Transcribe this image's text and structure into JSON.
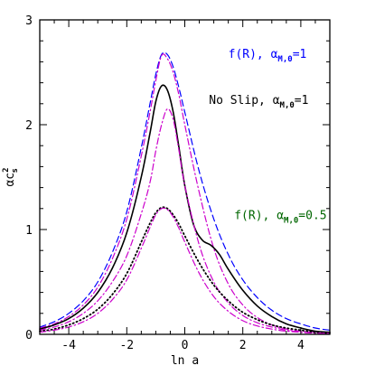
{
  "chart_data": {
    "type": "line",
    "title": "",
    "xlabel": "ln a",
    "ylabel_base": "αc",
    "ylabel_sup": "2",
    "ylabel_sub": "s",
    "xlim": [
      -5,
      5
    ],
    "ylim": [
      0,
      3
    ],
    "xticks": [
      -4,
      -2,
      0,
      2,
      4
    ],
    "yticks": [
      0,
      1,
      2,
      3
    ],
    "grid": false,
    "legend": "none",
    "series": [
      {
        "color": "#0000ff",
        "dash": "dashed",
        "x": [
          -5,
          -4.5,
          -4,
          -3.5,
          -3,
          -2.5,
          -2,
          -1.5,
          -1.2,
          -1,
          -0.8,
          -0.6,
          -0.4,
          -0.2,
          0,
          0.5,
          1,
          1.5,
          2,
          2.5,
          3,
          3.5,
          4,
          4.5,
          5
        ],
        "y": [
          0.07,
          0.12,
          0.2,
          0.32,
          0.5,
          0.78,
          1.17,
          1.78,
          2.2,
          2.48,
          2.67,
          2.67,
          2.55,
          2.35,
          2.12,
          1.55,
          1.1,
          0.76,
          0.52,
          0.35,
          0.23,
          0.15,
          0.1,
          0.06,
          0.04
        ]
      },
      {
        "color": "#cc00cc",
        "dash": "dashdot",
        "x": [
          -5,
          -4.5,
          -4,
          -3.5,
          -3,
          -2.5,
          -2,
          -1.5,
          -1.2,
          -1,
          -0.8,
          -0.6,
          -0.4,
          -0.2,
          0,
          0.5,
          1,
          1.5,
          2,
          2.5,
          3,
          3.5,
          4,
          4.5,
          5
        ],
        "y": [
          0.06,
          0.1,
          0.17,
          0.28,
          0.45,
          0.72,
          1.1,
          1.7,
          2.12,
          2.42,
          2.66,
          2.63,
          2.5,
          2.28,
          2.0,
          1.35,
          0.82,
          0.48,
          0.28,
          0.16,
          0.09,
          0.05,
          0.03,
          0.02,
          0.01
        ]
      },
      {
        "color": "#000000",
        "dash": "solid",
        "x": [
          -5,
          -4.5,
          -4,
          -3.5,
          -3,
          -2.5,
          -2,
          -1.5,
          -1.2,
          -1,
          -0.8,
          -0.6,
          -0.4,
          -0.2,
          0,
          0.3,
          0.6,
          0.9,
          1.2,
          1.5,
          2,
          2.5,
          3,
          3.5,
          4,
          4.5,
          5
        ],
        "y": [
          0.05,
          0.09,
          0.15,
          0.25,
          0.4,
          0.63,
          0.97,
          1.5,
          1.92,
          2.22,
          2.37,
          2.33,
          2.12,
          1.78,
          1.42,
          1.05,
          0.9,
          0.85,
          0.76,
          0.62,
          0.42,
          0.27,
          0.17,
          0.1,
          0.06,
          0.03,
          0.02
        ]
      },
      {
        "color": "#cc00cc",
        "dash": "dashdot",
        "x": [
          -5,
          -4.5,
          -4,
          -3.5,
          -3,
          -2.5,
          -2,
          -1.5,
          -1.2,
          -1,
          -0.8,
          -0.6,
          -0.4,
          -0.2,
          0,
          0.5,
          1,
          1.5,
          2,
          2.5,
          3,
          3.5,
          4,
          4.5,
          5
        ],
        "y": [
          0.04,
          0.07,
          0.12,
          0.2,
          0.32,
          0.5,
          0.75,
          1.15,
          1.45,
          1.75,
          2.0,
          2.15,
          2.05,
          1.75,
          1.42,
          0.85,
          0.5,
          0.3,
          0.18,
          0.11,
          0.07,
          0.04,
          0.02,
          0.01,
          0.01
        ]
      },
      {
        "color": "#000000",
        "dash": "dotted",
        "x": [
          -5,
          -4.5,
          -4,
          -3.5,
          -3,
          -2.5,
          -2,
          -1.5,
          -1.2,
          -1,
          -0.8,
          -0.6,
          -0.4,
          -0.2,
          0,
          0.5,
          1,
          1.5,
          2,
          2.5,
          3,
          3.5,
          4,
          4.5,
          5
        ],
        "y": [
          0.03,
          0.05,
          0.09,
          0.15,
          0.24,
          0.38,
          0.58,
          0.88,
          1.06,
          1.16,
          1.21,
          1.2,
          1.14,
          1.05,
          0.94,
          0.68,
          0.47,
          0.32,
          0.21,
          0.14,
          0.09,
          0.06,
          0.04,
          0.02,
          0.01
        ]
      },
      {
        "color": "#cc00cc",
        "dash": "dashdot",
        "x": [
          -5,
          -4.5,
          -4,
          -3.5,
          -3,
          -2.5,
          -2,
          -1.5,
          -1.2,
          -1,
          -0.8,
          -0.6,
          -0.4,
          -0.2,
          0,
          0.5,
          1,
          1.5,
          2,
          2.5,
          3,
          3.5,
          4,
          4.5,
          5
        ],
        "y": [
          0.02,
          0.04,
          0.07,
          0.12,
          0.2,
          0.33,
          0.52,
          0.82,
          1.02,
          1.14,
          1.2,
          1.19,
          1.12,
          1.01,
          0.88,
          0.58,
          0.36,
          0.22,
          0.13,
          0.08,
          0.05,
          0.03,
          0.02,
          0.01,
          0.01
        ]
      }
    ],
    "annotations": [
      {
        "id": "fr1",
        "base": "f(R), α",
        "sub": "M,0",
        "tail": "=1",
        "color": "#0000ff",
        "x": 2.85,
        "y": 2.64
      },
      {
        "id": "noslip",
        "base": "No Slip, α",
        "sub": "M,0",
        "tail": "=1",
        "color": "#000000",
        "x": 2.55,
        "y": 2.2
      },
      {
        "id": "fr05",
        "base": "f(R), α",
        "sub": "M,0",
        "tail": "=0.5",
        "color": "#006600",
        "x": 3.3,
        "y": 1.1
      }
    ]
  }
}
